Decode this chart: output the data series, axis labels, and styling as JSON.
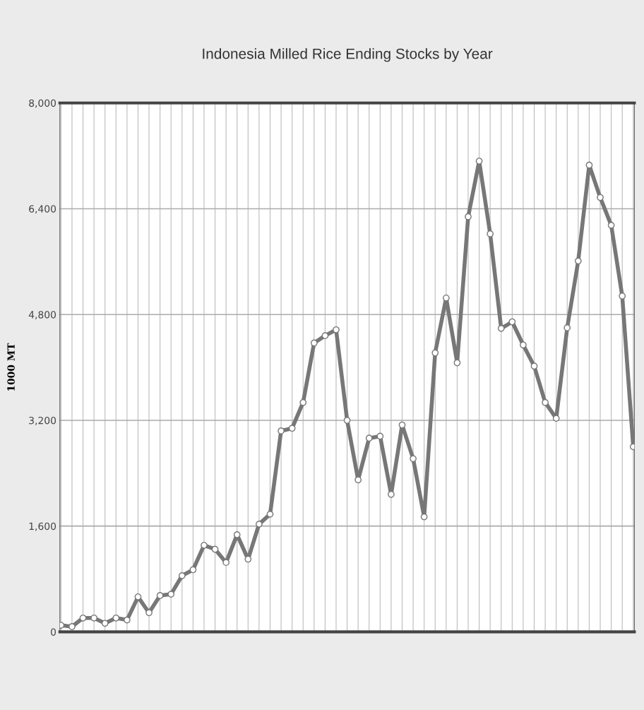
{
  "chart_data": {
    "type": "line",
    "title": "Indonesia Milled Rice Ending Stocks by Year",
    "ylabel": "1000 MT",
    "categories": [
      null,
      null,
      null,
      null,
      null,
      null,
      null,
      null,
      null,
      null,
      null,
      null,
      null,
      null,
      null,
      null,
      null,
      null,
      null,
      null,
      null,
      null,
      null,
      null,
      null,
      null,
      null,
      null,
      null,
      null,
      null,
      null,
      null,
      null,
      null,
      null,
      null,
      null,
      null,
      null,
      null,
      null,
      null,
      null,
      null,
      null,
      null,
      null,
      null,
      null,
      null,
      null,
      null
    ],
    "series": [
      {
        "color": "#777777",
        "values": [
          100,
          80,
          210,
          210,
          130,
          210,
          180,
          530,
          290,
          550,
          570,
          850,
          940,
          1310,
          1250,
          1050,
          1470,
          1100,
          1630,
          1780,
          3040,
          3080,
          3470,
          4370,
          4480,
          4570,
          3200,
          2300,
          2930,
          2960,
          2080,
          3130,
          2620,
          1740,
          4220,
          5050,
          4070,
          6280,
          7120,
          6020,
          4590,
          4690,
          4340,
          4020,
          3470,
          3230,
          4600,
          5610,
          7060,
          6570,
          6150,
          5080,
          2800
        ]
      }
    ],
    "ylim": [
      0,
      8000
    ],
    "yticks": [
      {
        "value": 0,
        "label": "0"
      },
      {
        "value": 1600,
        "label": "1,600"
      },
      {
        "value": 3200,
        "label": "3,200"
      },
      {
        "value": 4800,
        "label": "4,800"
      },
      {
        "value": 6400,
        "label": "6,400"
      },
      {
        "value": 8000,
        "label": "8,000"
      }
    ],
    "grid": true,
    "marker": "circle",
    "line_style": "solid",
    "legend": false
  }
}
